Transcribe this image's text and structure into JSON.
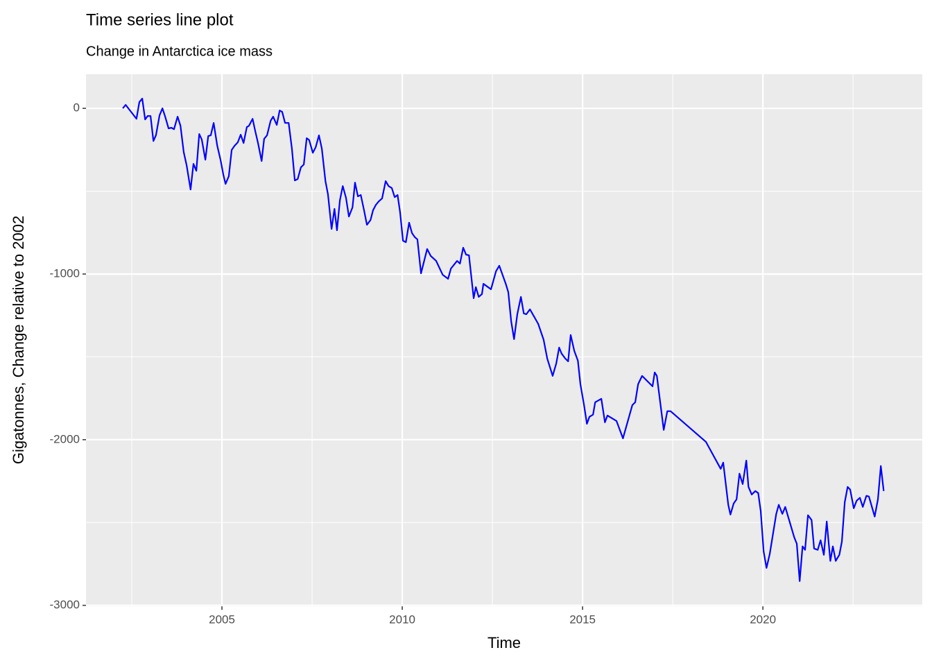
{
  "chart_data": {
    "type": "line",
    "title": "Time series line plot",
    "subtitle": "Change in Antarctica ice mass",
    "x_label": "Time",
    "y_label": "Gigatonnes, Change relative to 2002",
    "color": "#0000ff",
    "grid": true,
    "xlim": [
      2001.23,
      2024.42
    ],
    "ylim": [
      -3006,
      206
    ],
    "xticks": [
      2005,
      2010,
      2015,
      2020
    ],
    "yticks": [
      -3000,
      -2000,
      -1000,
      0
    ],
    "minor_xticks": [
      2002.5,
      2007.5,
      2012.5,
      2017.5,
      2022.5
    ],
    "minor_yticks": [
      -2500,
      -1500,
      -500
    ],
    "x": [
      2002.25,
      2002.33,
      2002.63,
      2002.71,
      2002.79,
      2002.87,
      2002.94,
      2003.02,
      2003.1,
      2003.17,
      2003.27,
      2003.35,
      2003.42,
      2003.52,
      2003.6,
      2003.67,
      2003.77,
      2003.85,
      2003.94,
      2004.02,
      2004.13,
      2004.21,
      2004.29,
      2004.37,
      2004.44,
      2004.54,
      2004.62,
      2004.69,
      2004.77,
      2004.87,
      2004.96,
      2005.04,
      2005.1,
      2005.19,
      2005.27,
      2005.35,
      2005.44,
      2005.52,
      2005.6,
      2005.69,
      2005.75,
      2005.85,
      2005.92,
      2006.0,
      2006.1,
      2006.17,
      2006.25,
      2006.35,
      2006.42,
      2006.52,
      2006.6,
      2006.67,
      2006.75,
      2006.85,
      2006.94,
      2007.02,
      2007.1,
      2007.19,
      2007.27,
      2007.35,
      2007.42,
      2007.52,
      2007.6,
      2007.69,
      2007.77,
      2007.87,
      2007.94,
      2008.04,
      2008.12,
      2008.19,
      2008.27,
      2008.35,
      2008.44,
      2008.52,
      2008.62,
      2008.69,
      2008.77,
      2008.85,
      2008.94,
      2009.02,
      2009.12,
      2009.19,
      2009.27,
      2009.35,
      2009.44,
      2009.54,
      2009.62,
      2009.71,
      2009.79,
      2009.87,
      2009.94,
      2010.02,
      2010.1,
      2010.19,
      2010.27,
      2010.35,
      2010.42,
      2010.52,
      2010.69,
      2010.79,
      2010.94,
      2011.12,
      2011.27,
      2011.35,
      2011.52,
      2011.6,
      2011.69,
      2011.77,
      2011.85,
      2011.98,
      2012.04,
      2012.12,
      2012.21,
      2012.25,
      2012.46,
      2012.6,
      2012.69,
      2012.87,
      2012.94,
      2013.02,
      2013.1,
      2013.19,
      2013.29,
      2013.37,
      2013.44,
      2013.54,
      2013.77,
      2013.92,
      2014.02,
      2014.17,
      2014.27,
      2014.35,
      2014.42,
      2014.52,
      2014.6,
      2014.67,
      2014.77,
      2014.87,
      2014.94,
      2015.04,
      2015.12,
      2015.19,
      2015.29,
      2015.35,
      2015.52,
      2015.62,
      2015.69,
      2015.94,
      2016.12,
      2016.38,
      2016.46,
      2016.54,
      2016.65,
      2016.94,
      2017.0,
      2017.06,
      2017.25,
      2017.35,
      2017.44,
      2018.42,
      2018.83,
      2018.9,
      2019.04,
      2019.1,
      2019.19,
      2019.27,
      2019.35,
      2019.44,
      2019.54,
      2019.6,
      2019.69,
      2019.79,
      2019.87,
      2019.94,
      2020.02,
      2020.1,
      2020.19,
      2020.37,
      2020.44,
      2020.54,
      2020.62,
      2020.87,
      2020.94,
      2021.02,
      2021.1,
      2021.17,
      2021.25,
      2021.35,
      2021.42,
      2021.52,
      2021.6,
      2021.69,
      2021.77,
      2021.87,
      2021.94,
      2022.02,
      2022.12,
      2022.19,
      2022.27,
      2022.35,
      2022.42,
      2022.52,
      2022.6,
      2022.69,
      2022.77,
      2022.87,
      2022.94,
      2023.1,
      2023.19,
      2023.27,
      2023.35
    ],
    "values": [
      0,
      21,
      -63,
      38,
      59,
      -67,
      -46,
      -46,
      -197,
      -163,
      -42,
      0,
      -46,
      -121,
      -117,
      -126,
      -50,
      -105,
      -264,
      -343,
      -490,
      -335,
      -377,
      -155,
      -188,
      -310,
      -167,
      -163,
      -88,
      -226,
      -310,
      -402,
      -456,
      -410,
      -251,
      -226,
      -205,
      -159,
      -209,
      -113,
      -105,
      -63,
      -134,
      -209,
      -318,
      -184,
      -163,
      -75,
      -50,
      -100,
      -13,
      -21,
      -88,
      -88,
      -243,
      -435,
      -427,
      -356,
      -339,
      -180,
      -192,
      -268,
      -234,
      -163,
      -243,
      -439,
      -519,
      -728,
      -607,
      -736,
      -556,
      -469,
      -540,
      -653,
      -598,
      -448,
      -531,
      -523,
      -615,
      -703,
      -674,
      -615,
      -582,
      -561,
      -544,
      -439,
      -469,
      -481,
      -536,
      -523,
      -628,
      -799,
      -808,
      -690,
      -753,
      -778,
      -791,
      -996,
      -849,
      -891,
      -921,
      -1004,
      -1029,
      -967,
      -921,
      -937,
      -841,
      -883,
      -887,
      -1146,
      -1079,
      -1138,
      -1121,
      -1059,
      -1092,
      -983,
      -950,
      -1059,
      -1109,
      -1285,
      -1393,
      -1243,
      -1138,
      -1238,
      -1243,
      -1213,
      -1301,
      -1397,
      -1510,
      -1615,
      -1540,
      -1444,
      -1481,
      -1510,
      -1527,
      -1368,
      -1464,
      -1523,
      -1665,
      -1791,
      -1904,
      -1862,
      -1849,
      -1774,
      -1753,
      -1895,
      -1854,
      -1887,
      -1992,
      -1791,
      -1774,
      -1665,
      -1615,
      -1678,
      -1594,
      -1615,
      -1941,
      -1828,
      -1828,
      -2013,
      -2176,
      -2138,
      -2393,
      -2452,
      -2385,
      -2360,
      -2205,
      -2268,
      -2126,
      -2285,
      -2331,
      -2310,
      -2322,
      -2431,
      -2674,
      -2774,
      -2690,
      -2448,
      -2393,
      -2448,
      -2406,
      -2590,
      -2628,
      -2854,
      -2644,
      -2665,
      -2456,
      -2485,
      -2657,
      -2665,
      -2607,
      -2695,
      -2494,
      -2732,
      -2644,
      -2732,
      -2695,
      -2615,
      -2377,
      -2285,
      -2301,
      -2414,
      -2368,
      -2351,
      -2406,
      -2339,
      -2343,
      -2464,
      -2360,
      -2159,
      -2310
    ]
  }
}
